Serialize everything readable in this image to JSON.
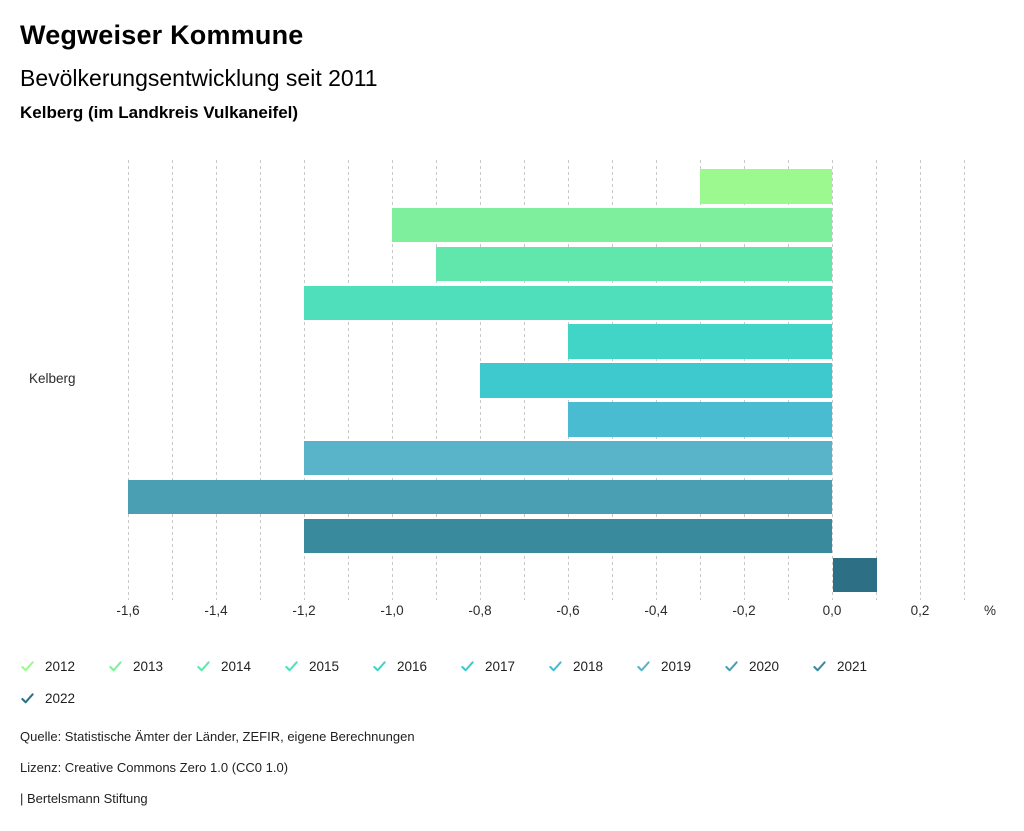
{
  "header": {
    "title": "Wegweiser Kommune",
    "subtitle": "Bevölkerungsentwicklung seit 2011",
    "region": "Kelberg (im Landkreis Vulkaneifel)"
  },
  "chart_data": {
    "type": "bar",
    "orientation": "horizontal",
    "title": "Bevölkerungsentwicklung seit 2011",
    "group_label": "Kelberg",
    "unit": "%",
    "categories": [
      "2012",
      "2013",
      "2014",
      "2015",
      "2016",
      "2017",
      "2018",
      "2019",
      "2020",
      "2021",
      "2022"
    ],
    "values": [
      -0.3,
      -1.0,
      -0.9,
      -1.2,
      -0.6,
      -0.8,
      -0.6,
      -1.2,
      -1.6,
      -1.2,
      0.1
    ],
    "colors": [
      "#9cf98f",
      "#7ef09d",
      "#61e7ac",
      "#4fdfba",
      "#41d5c7",
      "#3ec9cf",
      "#49bcd2",
      "#59b3c9",
      "#4b9fb2",
      "#3a8a9d",
      "#2d7086"
    ],
    "xlim": [
      -1.65,
      0.35
    ],
    "xticks": {
      "values": [
        -1.6,
        -1.4,
        -1.2,
        -1.0,
        -0.8,
        -0.6,
        -0.4,
        -0.2,
        0.0,
        0.2
      ],
      "labels": [
        "-1,6",
        "-1,4",
        "-1,2",
        "-1,0",
        "-0,8",
        "-0,6",
        "-0,4",
        "-0,2",
        "0,0",
        "0,2"
      ]
    },
    "gridlines": {
      "from": -1.6,
      "to": 0.3,
      "step": 0.1
    },
    "grid": true,
    "legend_position": "bottom",
    "legend_icon": "check"
  },
  "footer": {
    "source": "Quelle: Statistische Ämter der Länder, ZEFIR, eigene Berechnungen",
    "license": "Lizenz: Creative Commons Zero 1.0 (CC0 1.0)",
    "attribution": "| Bertelsmann Stiftung"
  }
}
